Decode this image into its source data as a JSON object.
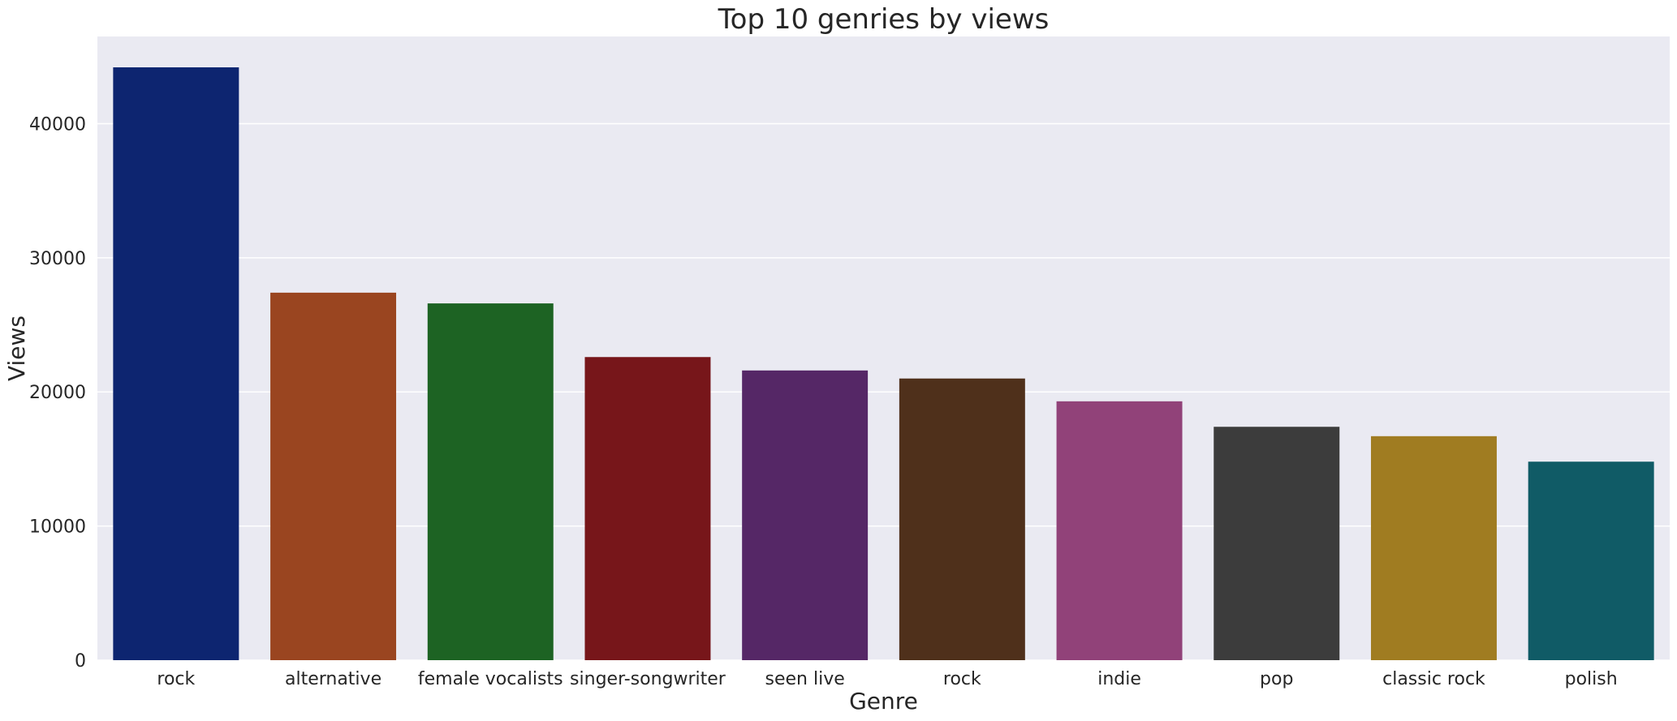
{
  "chart_data": {
    "type": "bar",
    "title": "Top 10 genries by views",
    "xlabel": "Genre",
    "ylabel": "Views",
    "categories": [
      "rock",
      "alternative",
      "female vocalists",
      "singer-songwriter",
      "seen live",
      "rock",
      "indie",
      "pop",
      "classic rock",
      "polish"
    ],
    "values": [
      44200,
      27400,
      26600,
      22600,
      21600,
      21000,
      19300,
      17400,
      16700,
      14800
    ],
    "colors": [
      "#0d2570",
      "#9a4520",
      "#1d6323",
      "#77161a",
      "#552766",
      "#4f301b",
      "#914279",
      "#3c3c3c",
      "#a07c21",
      "#105b66"
    ],
    "ylim": [
      0,
      46500
    ],
    "yticks": [
      0,
      10000,
      20000,
      30000,
      40000
    ],
    "grid": true,
    "plot_background": "#eaeaf2",
    "grid_color": "#ffffff"
  }
}
